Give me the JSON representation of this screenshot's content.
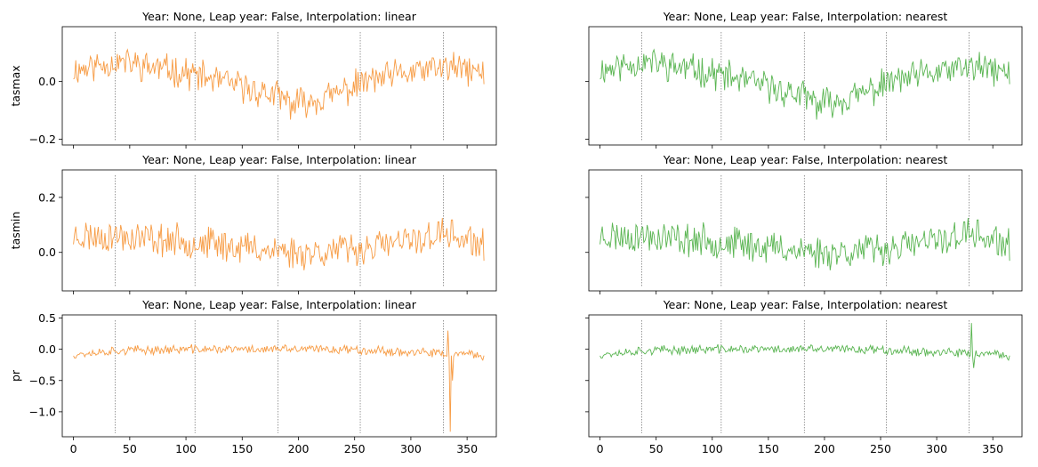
{
  "chart_data": [
    {
      "type": "line",
      "title": "Year: None, Leap year: False, Interpolation: linear",
      "ylabel": "tasmax",
      "xlabel": "",
      "series": [
        {
          "color": "#f79c45",
          "seed": 11,
          "base": [
            [
              0,
              0.04
            ],
            [
              40,
              0.07
            ],
            [
              100,
              0.03
            ],
            [
              150,
              -0.02
            ],
            [
              180,
              -0.05
            ],
            [
              195,
              -0.08
            ],
            [
              230,
              -0.05
            ],
            [
              260,
              0.0
            ],
            [
              300,
              0.03
            ],
            [
              330,
              0.05
            ],
            [
              365,
              0.03
            ]
          ],
          "amp": 0.045
        }
      ],
      "xlim": [
        -10,
        376
      ],
      "ylim": [
        -0.22,
        0.19
      ],
      "yticks": [
        -0.2,
        0.0
      ],
      "ytick_labels": [
        "−0.2",
        "0.0"
      ],
      "xticks": [
        0,
        50,
        100,
        150,
        200,
        250,
        300,
        350
      ],
      "xtick_labels": [],
      "vlines": [
        37,
        108,
        182,
        255,
        329
      ]
    },
    {
      "type": "line",
      "title": "Year: None, Leap year: False, Interpolation: nearest",
      "ylabel": "",
      "xlabel": "",
      "series": [
        {
          "color": "#5ab552",
          "seed": 11,
          "base": [
            [
              0,
              0.04
            ],
            [
              40,
              0.07
            ],
            [
              100,
              0.03
            ],
            [
              150,
              -0.02
            ],
            [
              180,
              -0.05
            ],
            [
              195,
              -0.08
            ],
            [
              230,
              -0.05
            ],
            [
              260,
              0.0
            ],
            [
              300,
              0.03
            ],
            [
              330,
              0.05
            ],
            [
              365,
              0.03
            ]
          ],
          "amp": 0.045
        }
      ],
      "xlim": [
        -10,
        376
      ],
      "ylim": [
        -0.22,
        0.19
      ],
      "yticks": [
        -0.2,
        0.0
      ],
      "ytick_labels": [],
      "xticks": [
        0,
        50,
        100,
        150,
        200,
        250,
        300,
        350
      ],
      "xtick_labels": [],
      "vlines": [
        37,
        108,
        182,
        255,
        329
      ]
    },
    {
      "type": "line",
      "title": "Year: None, Leap year: False, Interpolation: linear",
      "ylabel": "tasmin",
      "xlabel": "",
      "series": [
        {
          "color": "#f79c45",
          "seed": 23,
          "base": [
            [
              0,
              0.06
            ],
            [
              40,
              0.06
            ],
            [
              100,
              0.04
            ],
            [
              150,
              0.02
            ],
            [
              200,
              0.0
            ],
            [
              250,
              0.01
            ],
            [
              300,
              0.04
            ],
            [
              330,
              0.07
            ],
            [
              365,
              0.02
            ]
          ],
          "amp": 0.05
        }
      ],
      "xlim": [
        -10,
        376
      ],
      "ylim": [
        -0.14,
        0.3
      ],
      "yticks": [
        0.0,
        0.2
      ],
      "ytick_labels": [
        "0.0",
        "0.2"
      ],
      "xticks": [
        0,
        50,
        100,
        150,
        200,
        250,
        300,
        350
      ],
      "xtick_labels": [],
      "vlines": [
        37,
        108,
        182,
        255,
        329
      ]
    },
    {
      "type": "line",
      "title": "Year: None, Leap year: False, Interpolation: nearest",
      "ylabel": "",
      "xlabel": "",
      "series": [
        {
          "color": "#5ab552",
          "seed": 23,
          "base": [
            [
              0,
              0.06
            ],
            [
              40,
              0.06
            ],
            [
              100,
              0.04
            ],
            [
              150,
              0.02
            ],
            [
              200,
              0.0
            ],
            [
              250,
              0.01
            ],
            [
              300,
              0.04
            ],
            [
              330,
              0.07
            ],
            [
              365,
              0.02
            ]
          ],
          "amp": 0.05
        }
      ],
      "xlim": [
        -10,
        376
      ],
      "ylim": [
        -0.14,
        0.3
      ],
      "yticks": [
        0.0,
        0.2
      ],
      "ytick_labels": [],
      "xticks": [
        0,
        50,
        100,
        150,
        200,
        250,
        300,
        350
      ],
      "xtick_labels": [],
      "vlines": [
        37,
        108,
        182,
        255,
        329
      ]
    },
    {
      "type": "line",
      "title": "Year: None, Leap year: False, Interpolation: linear",
      "ylabel": "pr",
      "xlabel": "",
      "series": [
        {
          "color": "#f79c45",
          "seed": 37,
          "base": [
            [
              0,
              -0.08
            ],
            [
              40,
              -0.02
            ],
            [
              100,
              0.0
            ],
            [
              150,
              0.0
            ],
            [
              250,
              0.0
            ],
            [
              300,
              -0.05
            ],
            [
              365,
              -0.1
            ]
          ],
          "amp": 0.06,
          "spikes": [
            [
              333,
              0.3
            ],
            [
              335,
              -1.32
            ],
            [
              337,
              -0.5
            ]
          ]
        }
      ],
      "xlim": [
        -10,
        376
      ],
      "ylim": [
        -1.4,
        0.55
      ],
      "yticks": [
        -1.0,
        -0.5,
        0.0,
        0.5
      ],
      "ytick_labels": [
        "−1.0",
        "−0.5",
        "0.0",
        "0.5"
      ],
      "xticks": [
        0,
        50,
        100,
        150,
        200,
        250,
        300,
        350
      ],
      "xtick_labels": [
        "0",
        "50",
        "100",
        "150",
        "200",
        "250",
        "300",
        "350"
      ],
      "vlines": [
        37,
        108,
        182,
        255,
        329
      ]
    },
    {
      "type": "line",
      "title": "Year: None, Leap year: False, Interpolation: nearest",
      "ylabel": "",
      "xlabel": "",
      "series": [
        {
          "color": "#5ab552",
          "seed": 37,
          "base": [
            [
              0,
              -0.08
            ],
            [
              40,
              -0.02
            ],
            [
              100,
              0.0
            ],
            [
              150,
              0.0
            ],
            [
              250,
              0.0
            ],
            [
              300,
              -0.05
            ],
            [
              365,
              -0.1
            ]
          ],
          "amp": 0.06,
          "spikes": [
            [
              331,
              0.42
            ],
            [
              333,
              -0.3
            ]
          ]
        }
      ],
      "xlim": [
        -10,
        376
      ],
      "ylim": [
        -1.4,
        0.55
      ],
      "yticks": [
        -1.0,
        -0.5,
        0.0,
        0.5
      ],
      "ytick_labels": [],
      "xticks": [
        0,
        50,
        100,
        150,
        200,
        250,
        300,
        350
      ],
      "xtick_labels": [
        "0",
        "50",
        "100",
        "150",
        "200",
        "250",
        "300",
        "350"
      ],
      "vlines": [
        37,
        108,
        182,
        255,
        329
      ]
    }
  ]
}
